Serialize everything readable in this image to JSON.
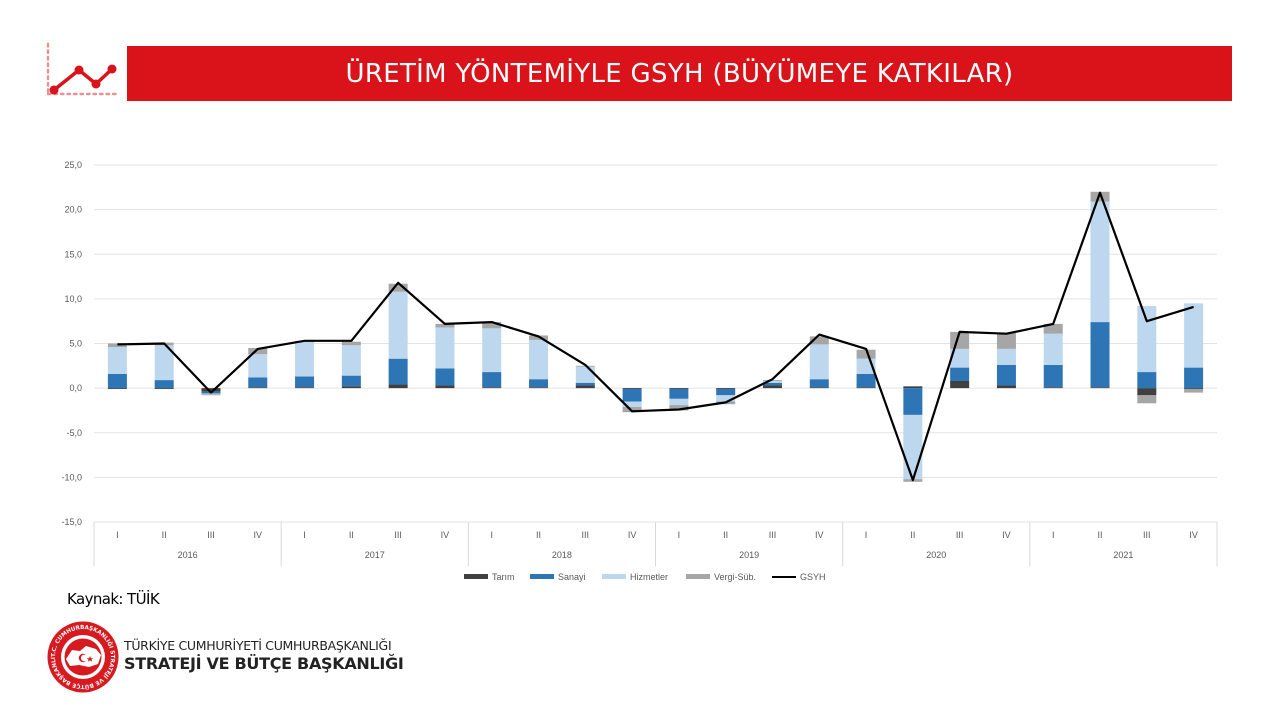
{
  "header": {
    "title": "ÜRETİM YÖNTEMİYLE GSYH (BÜYÜMEYE KATKILAR)",
    "logo_icon": "line-chart-icon",
    "bar_color": "#da1219"
  },
  "source": "Kaynak: TÜİK",
  "org": {
    "line1": "TÜRKİYE CUMHURİYETİ CUMHURBAŞKANLIĞI",
    "line2": "STRATEJİ VE BÜTÇE BAŞKANLIĞI",
    "seal_icon": "sbb-seal-icon",
    "seal_text": "T.C. CUMHURBAŞKANLIĞI STRATEJİ VE BÜTÇE BAŞKANLIĞI"
  },
  "chart_data": {
    "type": "bar",
    "stacked": true,
    "title": "",
    "xlabel": "",
    "ylabel": "",
    "ylim": [
      -15,
      25
    ],
    "y_ticks": [
      "25,0",
      "20,0",
      "15,0",
      "10,0",
      "5,0",
      "0,0",
      "-5,0",
      "-10,0",
      "-15,0"
    ],
    "grid": true,
    "legend_position": "bottom",
    "categories": [
      "I",
      "II",
      "III",
      "IV",
      "I",
      "II",
      "III",
      "IV",
      "I",
      "II",
      "III",
      "IV",
      "I",
      "II",
      "III",
      "IV",
      "I",
      "II",
      "III",
      "IV",
      "I",
      "II",
      "III",
      "IV"
    ],
    "years": [
      "2016",
      "2017",
      "2018",
      "2019",
      "2020",
      "2021"
    ],
    "series": [
      {
        "name": "Tarım",
        "type": "bar",
        "color": "#404040",
        "values": [
          -0.1,
          -0.1,
          -0.4,
          0.1,
          0.1,
          0.2,
          0.4,
          0.3,
          0.1,
          0.1,
          0.3,
          -0.1,
          -0.1,
          -0.1,
          0.3,
          0.1,
          0.1,
          0.2,
          0.8,
          0.3,
          0.1,
          0.1,
          -0.8,
          -0.1
        ]
      },
      {
        "name": "Sanayi",
        "type": "bar",
        "color": "#2e75b6",
        "values": [
          1.6,
          0.9,
          -0.2,
          1.1,
          1.2,
          1.2,
          2.9,
          1.9,
          1.7,
          0.9,
          0.3,
          -1.4,
          -1.1,
          -0.7,
          0.3,
          0.9,
          1.5,
          -3.0,
          1.5,
          2.3,
          2.5,
          7.3,
          1.8,
          2.3
        ]
      },
      {
        "name": "Hizmetler",
        "type": "bar",
        "color": "#bdd7ee",
        "values": [
          3.0,
          3.9,
          -0.1,
          2.6,
          3.9,
          3.4,
          7.5,
          4.6,
          4.9,
          4.4,
          1.8,
          -0.6,
          -0.7,
          -0.7,
          0.2,
          3.9,
          1.7,
          -7.2,
          2.1,
          1.8,
          3.5,
          13.5,
          7.4,
          7.2
        ]
      },
      {
        "name": "Vergi-Süb.",
        "type": "bar",
        "color": "#a6a6a6",
        "values": [
          0.4,
          0.3,
          -0.1,
          0.7,
          0.1,
          0.4,
          0.9,
          0.4,
          0.7,
          0.5,
          0.1,
          -0.6,
          -0.6,
          -0.3,
          0.1,
          0.9,
          1.0,
          -0.3,
          1.9,
          1.8,
          1.1,
          1.1,
          -0.9,
          -0.4
        ]
      },
      {
        "name": "GSYH",
        "type": "line",
        "color": "#000000",
        "values": [
          4.9,
          5.0,
          -0.5,
          4.4,
          5.3,
          5.3,
          11.8,
          7.2,
          7.4,
          5.8,
          2.6,
          -2.6,
          -2.4,
          -1.6,
          1.0,
          6.0,
          4.4,
          -10.3,
          6.3,
          6.1,
          7.2,
          21.9,
          7.5,
          9.1
        ]
      }
    ]
  }
}
